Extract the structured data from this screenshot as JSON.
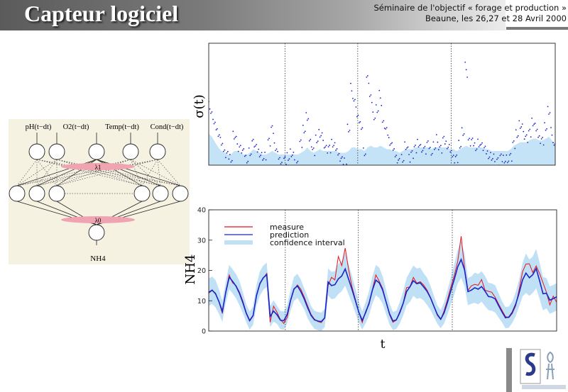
{
  "header": {
    "title": "Capteur logiciel",
    "seminar_line1": "Séminaire de l'objectif « forage et production »",
    "seminar_line2": "Beaune, les 26,27 et 28 Avril 2000"
  },
  "network": {
    "inputs": [
      "pH(t−dt)",
      "O2(t−dt)",
      "Temp(t−dt)",
      "Cond(t−dt)"
    ],
    "lambda1": "λ1",
    "lambda0": "λ0",
    "output": "NH4"
  },
  "colors": {
    "measure": "#e8141e",
    "prediction": "#1a23c8",
    "confidence": "#bfe0f5",
    "sigma_points": "#1a23c8",
    "pink": "#f0a3b1",
    "network_bg": "#f6f2e2"
  },
  "chart_data": [
    {
      "type": "scatter",
      "ylabel": "σ(t)",
      "xlim": [
        0,
        1
      ],
      "grid": false,
      "vlines": [
        0.22,
        0.43,
        0.7
      ],
      "series": [
        {
          "values": [
            0.38,
            0.31,
            0.24,
            0.2,
            0.14,
            0.1,
            0.08,
            0.06,
            0.18,
            0.14,
            0.12,
            0.09,
            0.05,
            0.08,
            0.16,
            0.12,
            0.09,
            0.06,
            0.05,
            0.16,
            0.22,
            0.12,
            0.06,
            0.03,
            0.05,
            0.07,
            0.08,
            0.05,
            0.03,
            0.14,
            0.22,
            0.28,
            0.16,
            0.1,
            0.17,
            0.19,
            0.16,
            0.12,
            0.11,
            0.14,
            0.11,
            0.08,
            0.05,
            0.04,
            0.22,
            0.44,
            0.38,
            0.28,
            0.24,
            0.08,
            0.52,
            0.4,
            0.3,
            0.33,
            0.4,
            0.26,
            0.21,
            0.15,
            0.11,
            0.07,
            0.04,
            0.06,
            0.12,
            0.08,
            0.09,
            0.11,
            0.14,
            0.1,
            0.12,
            0.14,
            0.1,
            0.12,
            0.15,
            0.12,
            0.16,
            0.13,
            0.1,
            0.07,
            0.06,
            0.14,
            0.2,
            0.56,
            0.16,
            0.15,
            0.12,
            0.13,
            0.14,
            0.11,
            0.08,
            0.06,
            0.04,
            0.05,
            0.06,
            0.05,
            0.04,
            0.08,
            0.14,
            0.2,
            0.24,
            0.21,
            0.18,
            0.2,
            0.26,
            0.22,
            0.18,
            0.16,
            0.24,
            0.32,
            0.19,
            0.13
          ],
          "band": [
            0.18,
            0.16,
            0.13,
            0.1,
            0.08,
            0.07,
            0.06,
            0.06,
            0.08,
            0.08,
            0.07,
            0.06,
            0.06,
            0.07,
            0.09,
            0.08,
            0.07,
            0.06,
            0.06,
            0.07,
            0.08,
            0.07,
            0.06,
            0.06,
            0.06,
            0.06,
            0.06,
            0.06,
            0.06,
            0.07,
            0.08,
            0.1,
            0.08,
            0.07,
            0.08,
            0.09,
            0.08,
            0.08,
            0.08,
            0.08,
            0.08,
            0.07,
            0.07,
            0.07,
            0.08,
            0.1,
            0.1,
            0.09,
            0.09,
            0.08,
            0.1,
            0.11,
            0.1,
            0.1,
            0.11,
            0.1,
            0.09,
            0.09,
            0.08,
            0.08,
            0.07,
            0.08,
            0.09,
            0.09,
            0.09,
            0.1,
            0.1,
            0.1,
            0.1,
            0.1,
            0.09,
            0.1,
            0.1,
            0.1,
            0.1,
            0.1,
            0.09,
            0.09,
            0.08,
            0.09,
            0.1,
            0.11,
            0.1,
            0.1,
            0.1,
            0.1,
            0.1,
            0.09,
            0.09,
            0.08,
            0.08,
            0.08,
            0.08,
            0.08,
            0.08,
            0.09,
            0.11,
            0.12,
            0.13,
            0.13,
            0.13,
            0.14,
            0.15,
            0.15,
            0.14,
            0.14,
            0.15,
            0.16,
            0.14,
            0.12
          ]
        }
      ]
    },
    {
      "type": "line",
      "xlabel": "t",
      "ylabel": "NH4",
      "ylim": [
        0,
        40
      ],
      "yticks": [
        0,
        10,
        20,
        30,
        40
      ],
      "vlines": [
        0.22,
        0.43,
        0.7
      ],
      "legend": "top-left",
      "series": [
        {
          "name": "measure",
          "values": [
            12.5,
            13.4,
            12.5,
            9.6,
            5.8,
            12.9,
            18.5,
            15.9,
            15.0,
            12.9,
            9.9,
            6.1,
            3.6,
            5.2,
            11.5,
            15.5,
            17.5,
            19.0,
            2.9,
            8.2,
            6.2,
            3.8,
            2.5,
            4.5,
            9.9,
            13.7,
            15.2,
            13.8,
            11.2,
            8.3,
            5.5,
            3.9,
            3.1,
            2.8,
            4.3,
            15.0,
            17.7,
            16.9,
            24.6,
            21.6,
            27.4,
            20.3,
            14.6,
            10.4,
            6.2,
            2.8,
            6.5,
            8.8,
            13.8,
            18.5,
            16.4,
            14.0,
            9.7,
            5.4,
            2.9,
            3.6,
            6.4,
            9.2,
            14.3,
            14.6,
            17.7,
            15.8,
            16.3,
            15.2,
            13.5,
            11.1,
            8.3,
            5.2,
            3.8,
            6.7,
            10.4,
            14.6,
            18.4,
            23.0,
            31.3,
            20.8,
            13.4,
            14.9,
            15.4,
            15.1,
            17.0,
            13.5,
            13.1,
            12.8,
            11.1,
            8.9,
            6.8,
            4.8,
            4.4,
            5.8,
            8.4,
            13.7,
            19.6,
            22.1,
            22.2,
            19.3,
            21.5,
            19.0,
            15.9,
            12.8,
            8.6,
            11.5,
            9.5
          ]
        },
        {
          "name": "prediction",
          "values": [
            12.8,
            13.5,
            12.3,
            9.7,
            6.5,
            12.8,
            17.8,
            16.4,
            14.8,
            12.5,
            9.4,
            5.9,
            3.4,
            5.1,
            11.8,
            15.7,
            17.6,
            18.6,
            4.8,
            6.6,
            5.4,
            3.6,
            3.4,
            5.5,
            10.2,
            13.9,
            14.9,
            13.0,
            10.6,
            7.7,
            5.2,
            3.7,
            3.3,
            3.1,
            4.3,
            16.2,
            15.0,
            15.3,
            17.2,
            18.2,
            20.5,
            17.1,
            13.7,
            10.0,
            6.2,
            3.5,
            6.1,
            9.2,
            13.6,
            16.8,
            15.9,
            13.5,
            9.6,
            5.7,
            3.3,
            3.7,
            6.0,
            9.1,
            13.0,
            14.6,
            16.6,
            15.6,
            15.9,
            14.6,
            13.1,
            11.0,
            8.2,
            5.5,
            3.9,
            6.0,
            9.5,
            13.4,
            17.1,
            21.2,
            23.6,
            20.2,
            13.0,
            13.5,
            14.3,
            13.8,
            14.7,
            13.2,
            11.4,
            11.2,
            10.6,
            8.4,
            6.3,
            4.4,
            4.6,
            6.2,
            8.9,
            12.6,
            16.9,
            19.1,
            17.6,
            18.6,
            20.6,
            16.6,
            12.3,
            12.5,
            10.2,
            10.7,
            11.3
          ]
        },
        {
          "name": "confidence interval",
          "values": [
            12.8,
            13.5,
            12.3,
            9.7,
            6.5,
            12.8,
            17.8,
            16.4,
            14.8,
            12.5,
            9.4,
            5.9,
            3.4,
            5.1,
            11.8,
            15.7,
            17.6,
            18.6,
            4.8,
            6.6,
            5.4,
            3.6,
            3.4,
            5.5,
            10.2,
            13.9,
            14.9,
            13.0,
            10.6,
            7.7,
            5.2,
            3.7,
            3.3,
            3.1,
            4.3,
            16.2,
            15.0,
            15.3,
            17.2,
            18.2,
            20.5,
            17.1,
            13.7,
            10.0,
            6.2,
            3.5,
            6.1,
            9.2,
            13.6,
            16.8,
            15.9,
            13.5,
            9.6,
            5.7,
            3.3,
            3.7,
            6.0,
            9.1,
            13.0,
            14.6,
            16.6,
            15.6,
            15.9,
            14.6,
            13.1,
            11.0,
            8.2,
            5.5,
            3.9,
            6.0,
            9.5,
            13.4,
            17.1,
            21.2,
            23.6,
            20.2,
            13.0,
            13.5,
            14.3,
            13.8,
            14.7,
            13.2,
            11.4,
            11.2,
            10.6,
            8.4,
            6.3,
            4.4,
            4.6,
            6.2,
            8.9,
            12.6,
            16.9,
            19.1,
            17.6,
            18.6,
            20.6,
            16.6,
            12.3,
            12.5,
            10.2,
            10.7,
            11.3
          ],
          "band": [
            4.5,
            4.5,
            4.5,
            4.0,
            3.5,
            3.5,
            4.0,
            4.0,
            4.0,
            4.0,
            3.5,
            3.0,
            3.0,
            3.0,
            3.5,
            4.0,
            4.0,
            4.0,
            3.5,
            3.5,
            3.0,
            3.0,
            3.0,
            3.0,
            3.5,
            4.0,
            4.0,
            4.0,
            3.5,
            3.5,
            3.0,
            3.0,
            3.0,
            3.0,
            3.0,
            4.5,
            4.5,
            4.5,
            5.0,
            5.0,
            5.5,
            5.0,
            4.5,
            4.0,
            3.5,
            3.0,
            3.5,
            4.0,
            4.5,
            5.0,
            5.0,
            4.5,
            4.0,
            3.5,
            3.0,
            3.0,
            3.5,
            4.0,
            4.5,
            5.0,
            5.0,
            5.0,
            5.0,
            4.5,
            4.5,
            4.0,
            3.5,
            3.0,
            3.0,
            3.5,
            4.0,
            4.5,
            5.0,
            5.5,
            6.0,
            5.5,
            4.5,
            4.5,
            5.0,
            5.0,
            5.0,
            5.0,
            4.5,
            4.5,
            4.5,
            4.0,
            3.5,
            3.5,
            3.5,
            3.5,
            4.0,
            4.5,
            5.5,
            6.5,
            6.0,
            6.0,
            6.5,
            6.0,
            5.5,
            5.0,
            4.5,
            4.5,
            4.5
          ]
        }
      ]
    }
  ]
}
